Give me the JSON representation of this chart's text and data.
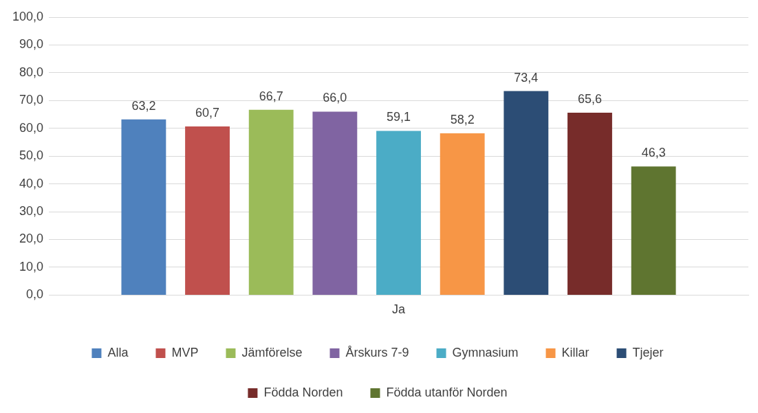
{
  "chart_data": {
    "type": "bar",
    "categories": [
      "Ja"
    ],
    "series": [
      {
        "name": "Alla",
        "color": "#4f81bd",
        "values": [
          63.2
        ],
        "value_labels": [
          "63,2"
        ]
      },
      {
        "name": "MVP",
        "color": "#c0504d",
        "values": [
          60.7
        ],
        "value_labels": [
          "60,7"
        ]
      },
      {
        "name": "Jämförelse",
        "color": "#9bbb59",
        "values": [
          66.7
        ],
        "value_labels": [
          "66,7"
        ]
      },
      {
        "name": "Årskurs 7-9",
        "color": "#8064a2",
        "values": [
          66.0
        ],
        "value_labels": [
          "66,0"
        ]
      },
      {
        "name": "Gymnasium",
        "color": "#4bacc6",
        "values": [
          59.1
        ],
        "value_labels": [
          "59,1"
        ]
      },
      {
        "name": "Killar",
        "color": "#f79646",
        "values": [
          58.2
        ],
        "value_labels": [
          "58,2"
        ]
      },
      {
        "name": "Tjejer",
        "color": "#2c4d75",
        "values": [
          73.4
        ],
        "value_labels": [
          "73,4"
        ]
      },
      {
        "name": "Födda Norden",
        "color": "#772c2a",
        "values": [
          65.6
        ],
        "value_labels": [
          "65,6"
        ]
      },
      {
        "name": "Födda utanför Norden",
        "color": "#5f7530",
        "values": [
          46.3
        ],
        "value_labels": [
          "46,3"
        ]
      }
    ],
    "ylim": [
      0,
      100
    ],
    "yticks": [
      {
        "value": 0,
        "label": "0,0"
      },
      {
        "value": 10,
        "label": "10,0"
      },
      {
        "value": 20,
        "label": "20,0"
      },
      {
        "value": 30,
        "label": "30,0"
      },
      {
        "value": 40,
        "label": "40,0"
      },
      {
        "value": 50,
        "label": "50,0"
      },
      {
        "value": 60,
        "label": "60,0"
      },
      {
        "value": 70,
        "label": "70,0"
      },
      {
        "value": 80,
        "label": "80,0"
      },
      {
        "value": 90,
        "label": "90,0"
      },
      {
        "value": 100,
        "label": "100,0"
      }
    ],
    "grid": "y",
    "legend": "bottom"
  }
}
